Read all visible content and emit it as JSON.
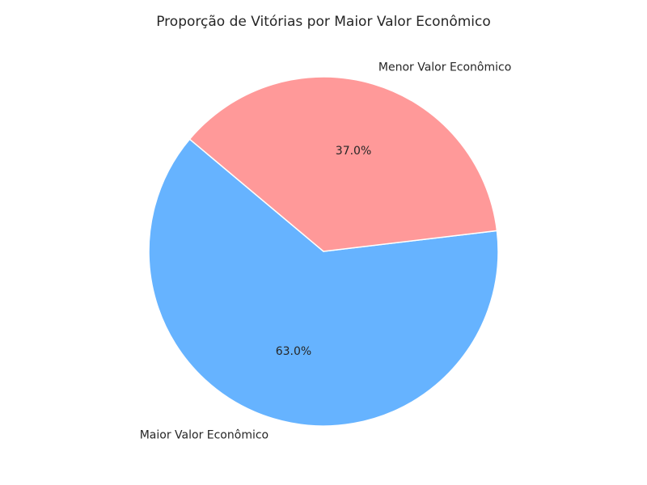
{
  "chart_data": {
    "type": "pie",
    "title": "Proporção de Vitórias por Maior Valor Econômico",
    "slices": [
      {
        "label": "Maior Valor Econômico",
        "value": 63.0,
        "pct_label": "63.0%",
        "color": "#66b3ff"
      },
      {
        "label": "Menor Valor Econômico",
        "value": 37.0,
        "pct_label": "37.0%",
        "color": "#ff9999"
      }
    ],
    "start_angle_deg": 140,
    "direction": "counterclockwise"
  }
}
